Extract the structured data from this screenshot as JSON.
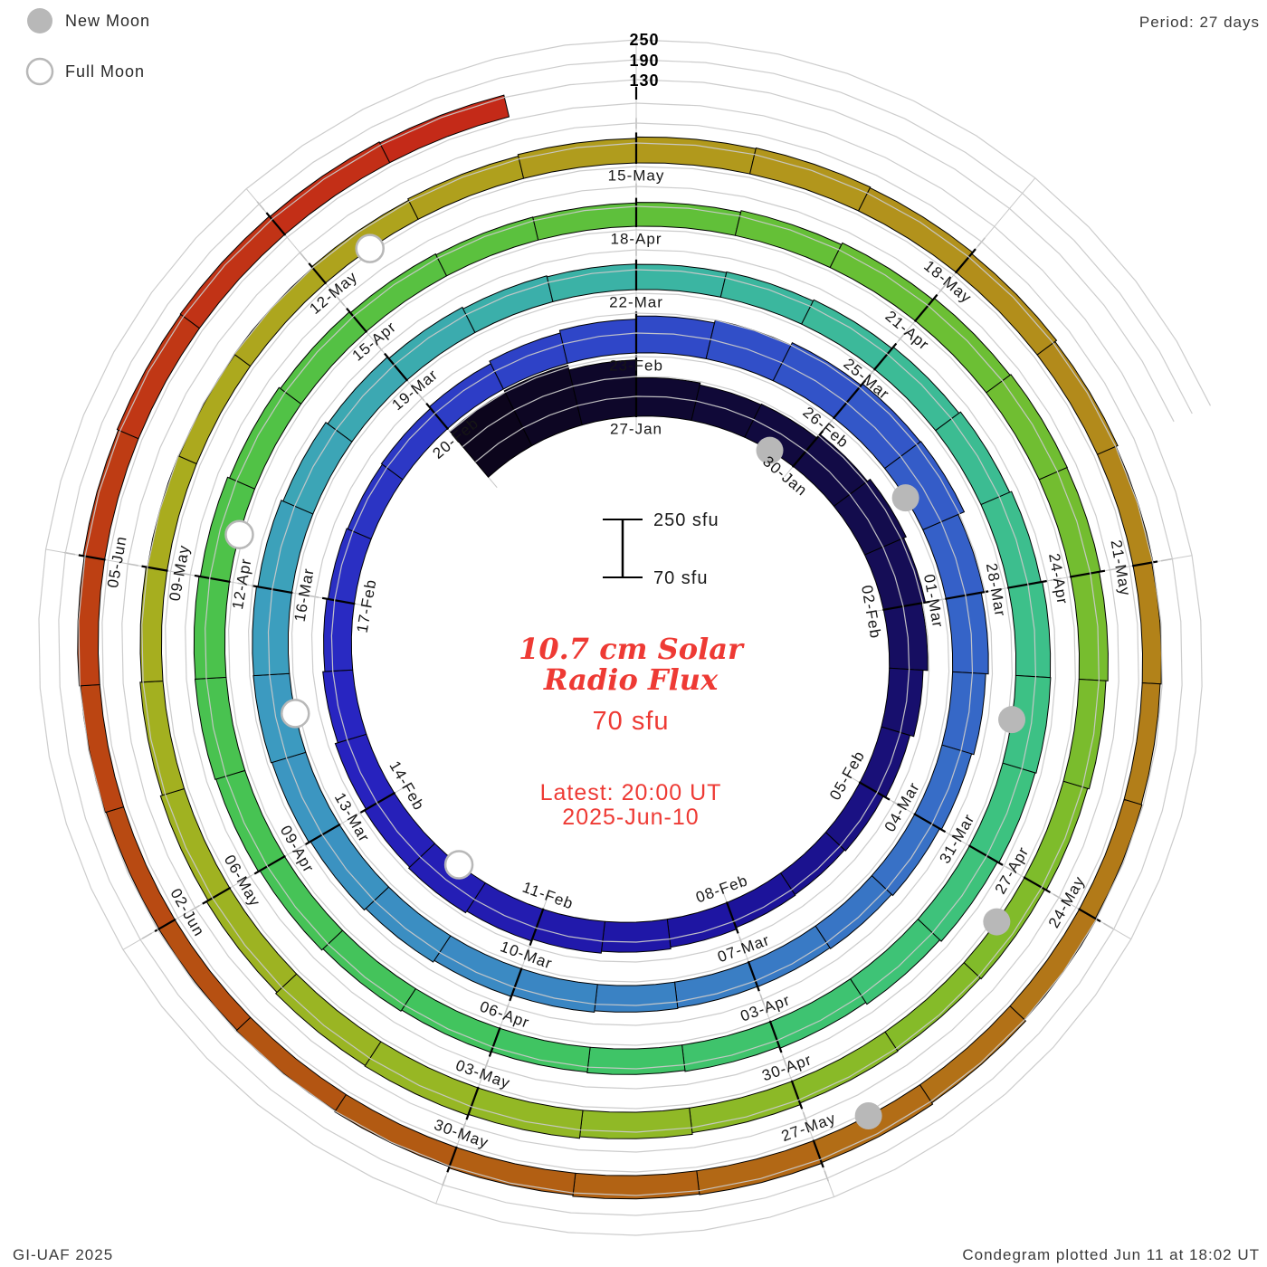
{
  "legend": {
    "new_moon_label": "New Moon",
    "full_moon_label": "Full Moon",
    "marker_color": "#b8b8b8"
  },
  "header": {
    "period_label": "Period: 27 days"
  },
  "footer": {
    "credit": "GI-UAF 2025",
    "plotted": "Condegram plotted Jun 11 at 18:02 UT"
  },
  "center_text": {
    "title_line1": "10.7 cm Solar",
    "title_line2": "Radio Flux",
    "baseline_value": "70 sfu",
    "latest_line1": "Latest: 20:00 UT",
    "latest_line2": "2025-Jun-10",
    "accent_color": "#ee3a34"
  },
  "scale_bar": {
    "top_label": "250 sfu",
    "bottom_label": "70 sfu"
  },
  "radial_axis": {
    "labels": [
      "250",
      "190",
      "130"
    ]
  },
  "chart_data": {
    "type": "bar",
    "layout": "polar spiral condegram; one revolution = 27 days; time runs clockwise from top and outward; bar height = flux above 70 sfu baseline",
    "title": "10.7 cm Solar Radio Flux",
    "period_days": 27,
    "baseline_sfu": 70,
    "scale_max_sfu": 250,
    "gridlines_sfu": [
      130,
      190,
      250
    ],
    "start_date": "2025-Jan-24",
    "end_date": "2025-Jun-10",
    "bars_drawn_through": "2025-Jun-09",
    "grid_on": true,
    "note": "daily flux values estimated from bar heights read against the 130/190/250 sfu gridlines",
    "date_labels": [
      "27-Jan",
      "30-Jan",
      "02-Feb",
      "05-Feb",
      "08-Feb",
      "11-Feb",
      "14-Feb",
      "17-Feb",
      "20-Feb",
      "23-Feb",
      "26-Feb",
      "01-Mar",
      "04-Mar",
      "07-Mar",
      "10-Mar",
      "13-Mar",
      "16-Mar",
      "19-Mar",
      "22-Mar",
      "25-Mar",
      "28-Mar",
      "31-Mar",
      "03-Apr",
      "06-Apr",
      "09-Apr",
      "12-Apr",
      "15-Apr",
      "18-Apr",
      "21-Apr",
      "24-Apr",
      "27-Apr",
      "30-Apr",
      "03-May",
      "06-May",
      "09-May",
      "12-May",
      "15-May",
      "18-May",
      "21-May",
      "24-May",
      "27-May",
      "30-May",
      "02-Jun",
      "05-Jun"
    ],
    "flux": [
      250,
      255,
      240,
      186,
      180,
      182,
      196,
      206,
      198,
      186,
      172,
      160,
      152,
      148,
      150,
      155,
      160,
      166,
      172,
      178,
      174,
      168,
      160,
      154,
      150,
      147,
      150,
      156,
      164,
      172,
      181,
      190,
      198,
      204,
      206,
      186,
      178,
      170,
      163,
      157,
      152,
      149,
      148,
      150,
      154,
      159,
      165,
      171,
      176,
      179,
      178,
      174,
      168,
      161,
      155,
      150,
      147,
      146,
      148,
      152,
      158,
      164,
      170,
      174,
      175,
      172,
      167,
      161,
      155,
      150,
      147,
      145,
      147,
      151,
      156,
      161,
      164,
      163,
      159,
      153,
      148,
      144,
      141,
      140,
      142,
      147,
      153,
      159,
      162,
      161,
      157,
      151,
      146,
      141,
      138,
      140,
      145,
      150,
      155,
      158,
      156,
      151,
      145,
      139,
      134,
      130,
      128,
      130,
      134,
      139,
      144,
      148,
      150,
      148,
      143,
      137,
      131,
      127,
      124,
      126,
      130,
      135,
      140,
      142,
      140,
      136,
      132,
      128,
      126,
      125,
      128,
      132,
      136,
      140,
      142,
      140,
      137,
      136
    ],
    "moons": [
      {
        "date": "2025-Jan-29",
        "phase": "new",
        "day_index": 5
      },
      {
        "date": "2025-Feb-12",
        "phase": "full",
        "day_index": 19
      },
      {
        "date": "2025-Feb-27",
        "phase": "new",
        "day_index": 34
      },
      {
        "date": "2025-Mar-14",
        "phase": "full",
        "day_index": 49
      },
      {
        "date": "2025-Mar-29",
        "phase": "new",
        "day_index": 64
      },
      {
        "date": "2025-Apr-12",
        "phase": "full",
        "day_index": 78
      },
      {
        "date": "2025-Apr-27",
        "phase": "new",
        "day_index": 93
      },
      {
        "date": "2025-May-12",
        "phase": "full",
        "day_index": 108
      },
      {
        "date": "2025-May-26",
        "phase": "new",
        "day_index": 122
      }
    ],
    "colormap_anchors": [
      [
        0,
        "#0b0518"
      ],
      [
        8,
        "#140c50"
      ],
      [
        15,
        "#1d14a0"
      ],
      [
        22,
        "#2823c0"
      ],
      [
        29,
        "#2e44c8"
      ],
      [
        36,
        "#3562c8"
      ],
      [
        43,
        "#3a80c4"
      ],
      [
        50,
        "#3c9cc0"
      ],
      [
        57,
        "#3bb4a4"
      ],
      [
        64,
        "#3dc188"
      ],
      [
        71,
        "#3fc464"
      ],
      [
        78,
        "#4cc24a"
      ],
      [
        85,
        "#63c038"
      ],
      [
        92,
        "#7cbc2c"
      ],
      [
        99,
        "#95b824"
      ],
      [
        106,
        "#abab1e"
      ],
      [
        113,
        "#b2941c"
      ],
      [
        120,
        "#b27818"
      ],
      [
        127,
        "#b25812"
      ],
      [
        131,
        "#bc4212"
      ],
      [
        137,
        "#c52818"
      ]
    ],
    "grid_color": "#c9c9c9",
    "legend_position": "top-left",
    "marker_radius_px": 15
  }
}
